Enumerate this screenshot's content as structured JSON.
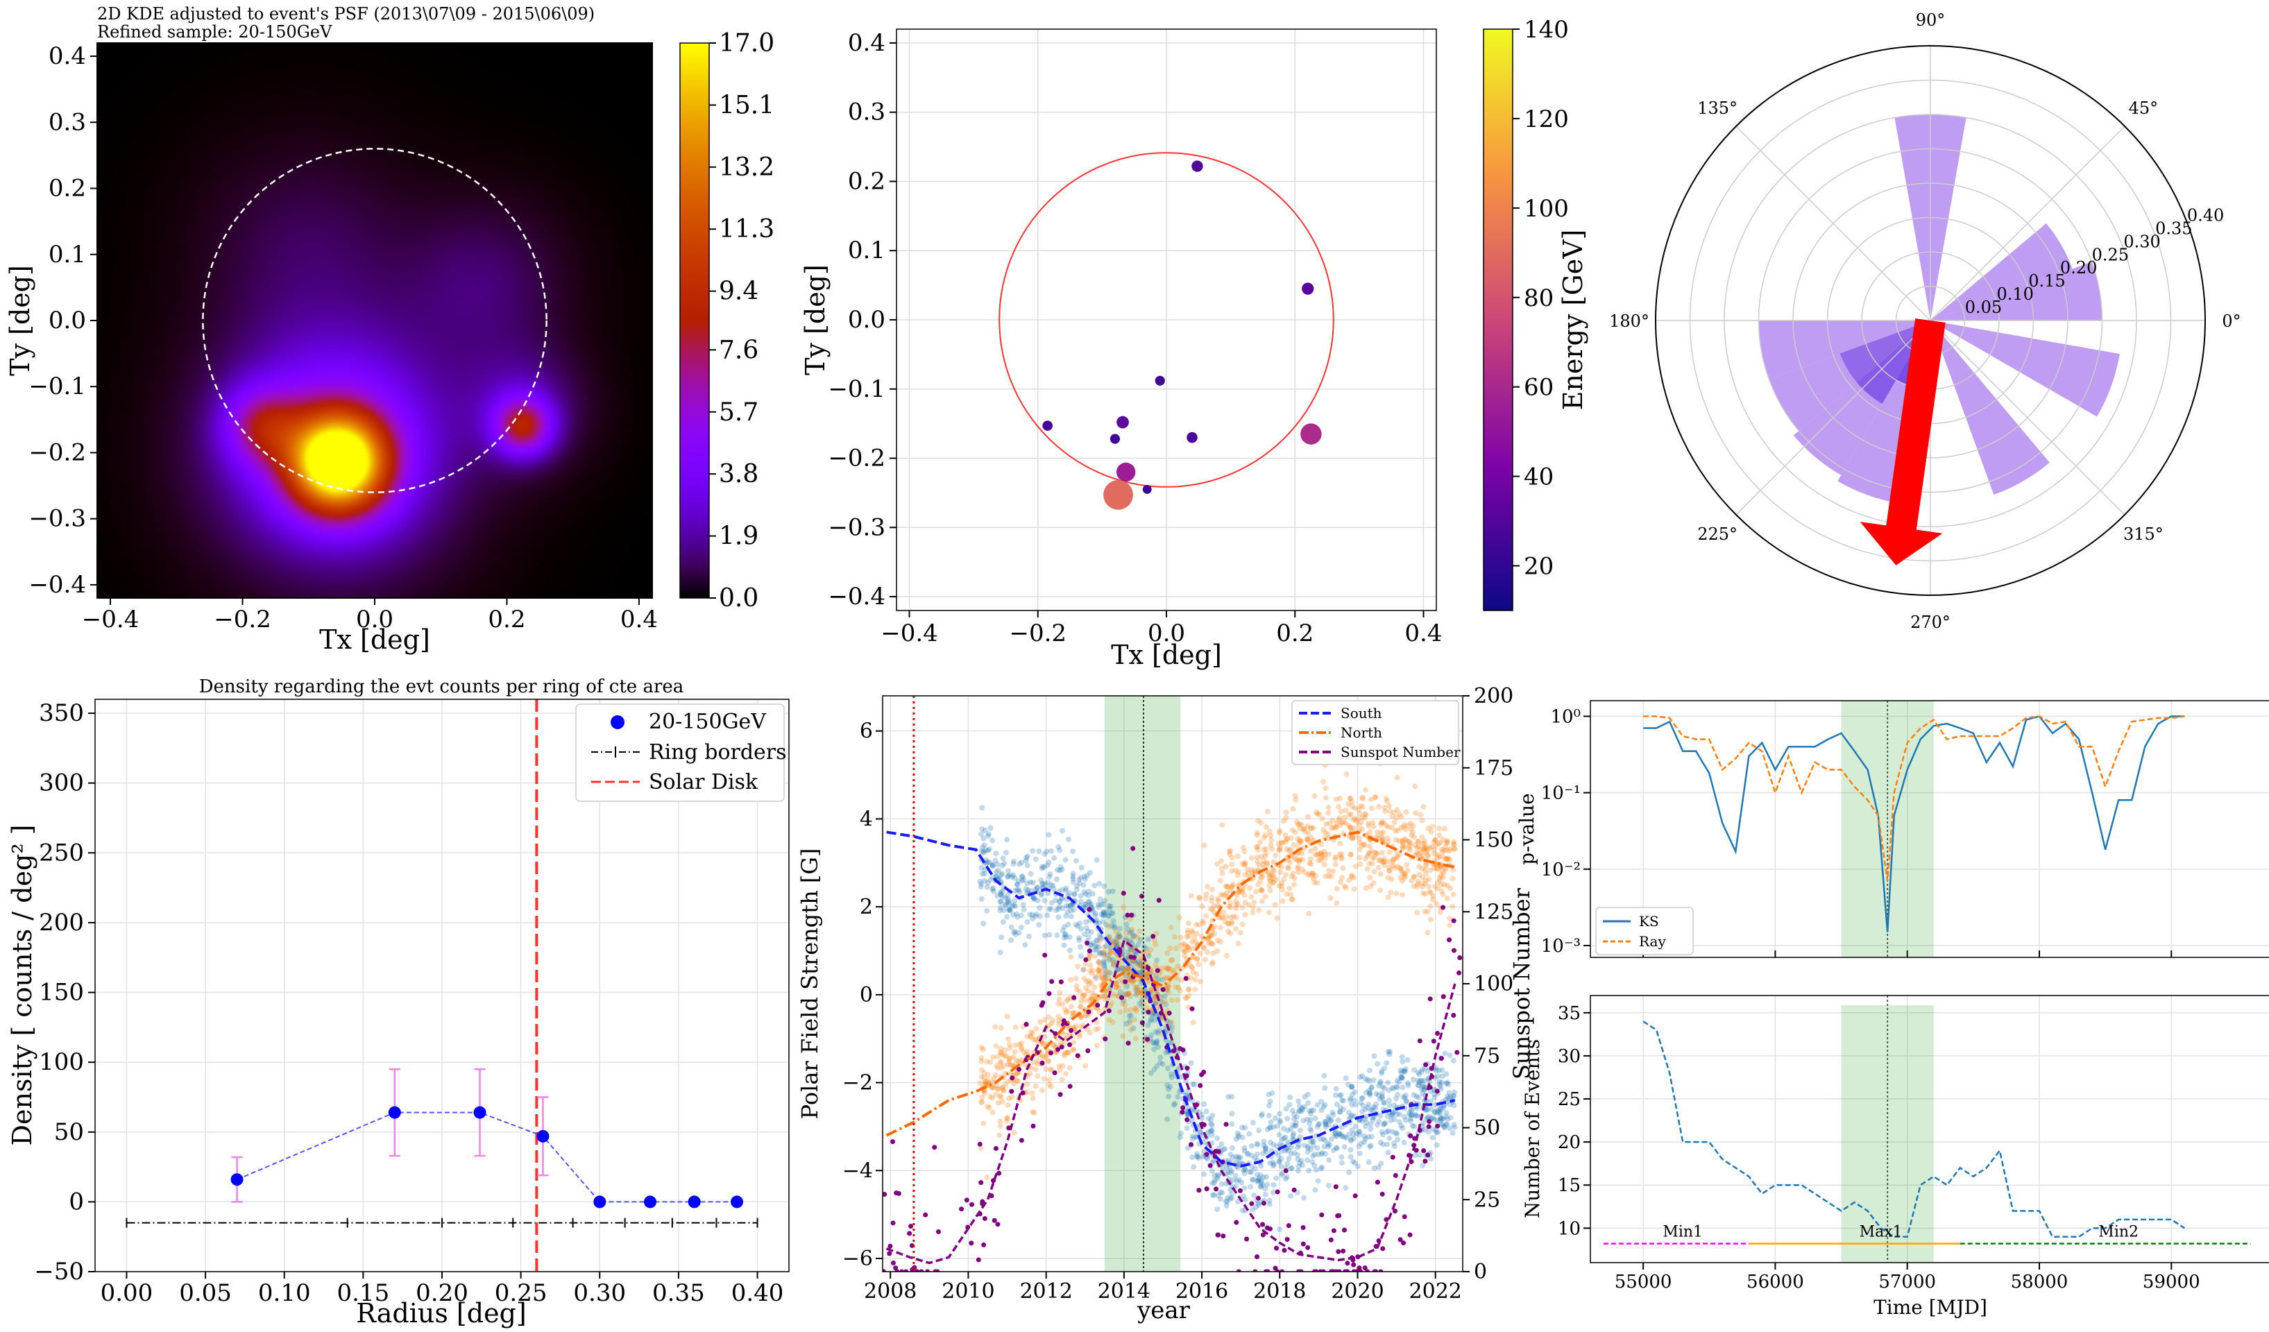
{
  "chart_data": [
    {
      "id": "kde",
      "type": "heatmap",
      "title": "2D KDE adjusted to event's PSF (2013\\07\\09 - 2015\\06\\09)",
      "subtitle": "Refined sample: 20-150GeV",
      "xlabel": "Tx [deg]",
      "ylabel": "Ty [deg]",
      "xlim": [
        -0.42,
        0.42
      ],
      "ylim": [
        -0.42,
        0.42
      ],
      "xticks": [
        "−0.4",
        "−0.2",
        "0.0",
        "0.2",
        "0.4"
      ],
      "yticks": [
        "0.4",
        "0.3",
        "0.2",
        "0.1",
        "0.0",
        "−0.1",
        "−0.2",
        "−0.3",
        "−0.4"
      ],
      "colorbar_ticks": [
        "17.0",
        "15.1",
        "13.2",
        "11.3",
        "9.4",
        "7.6",
        "5.7",
        "3.8",
        "1.9",
        "0.0"
      ],
      "colorbar_range": [
        0,
        17
      ],
      "solar_disk_radius": 0.26,
      "blobs": [
        {
          "x": -0.055,
          "y": -0.215,
          "amp": 17,
          "s": 0.05
        },
        {
          "x": -0.06,
          "y": -0.19,
          "amp": 6,
          "s": 0.11
        },
        {
          "x": -0.17,
          "y": -0.16,
          "amp": 5,
          "s": 0.04
        },
        {
          "x": 0.225,
          "y": -0.16,
          "amp": 7,
          "s": 0.03
        },
        {
          "x": 0.22,
          "y": -0.13,
          "amp": 2,
          "s": 0.06
        },
        {
          "x": 0.16,
          "y": 0.05,
          "amp": 1.3,
          "s": 0.08
        },
        {
          "x": -0.1,
          "y": 0.1,
          "amp": 1.0,
          "s": 0.1
        }
      ]
    },
    {
      "id": "scatter",
      "type": "scatter",
      "xlabel": "Tx [deg]",
      "ylabel": "Ty [deg]",
      "colorbar_label": "Energy [GeV]",
      "xlim": [
        -0.42,
        0.42
      ],
      "ylim": [
        -0.42,
        0.42
      ],
      "xticks": [
        "−0.4",
        "−0.2",
        "0.0",
        "0.2",
        "0.4"
      ],
      "yticks": [
        "0.4",
        "0.3",
        "0.2",
        "0.1",
        "0.0",
        "−0.1",
        "−0.2",
        "−0.3",
        "−0.4"
      ],
      "colorbar_ticks": [
        "140",
        "120",
        "100",
        "80",
        "60",
        "40",
        "20"
      ],
      "colorbar_range": [
        10,
        140
      ],
      "solar_disk_radius": 0.26,
      "points": [
        {
          "x": 0.048,
          "y": 0.222,
          "e": 30
        },
        {
          "x": 0.22,
          "y": 0.045,
          "e": 32
        },
        {
          "x": -0.01,
          "y": -0.088,
          "e": 25
        },
        {
          "x": -0.185,
          "y": -0.153,
          "e": 26
        },
        {
          "x": -0.068,
          "y": -0.148,
          "e": 33
        },
        {
          "x": -0.08,
          "y": -0.172,
          "e": 25
        },
        {
          "x": 0.04,
          "y": -0.17,
          "e": 28
        },
        {
          "x": 0.225,
          "y": -0.165,
          "e": 62
        },
        {
          "x": -0.063,
          "y": -0.22,
          "e": 55
        },
        {
          "x": -0.03,
          "y": -0.245,
          "e": 22
        },
        {
          "x": -0.075,
          "y": -0.253,
          "e": 90
        }
      ]
    },
    {
      "id": "polar",
      "type": "bar",
      "angle_labels": [
        "0°",
        "45°",
        "90°",
        "135°",
        "180°",
        "225°",
        "270°",
        "315°"
      ],
      "radial_ticks": [
        "0.05",
        "0.10",
        "0.15",
        "0.20",
        "0.25",
        "0.30",
        "0.35",
        "0.40"
      ],
      "rmax": 0.4,
      "sectors": [
        {
          "start": 0,
          "end": 20,
          "r": 0.25,
          "color": "#b48cf0"
        },
        {
          "start": 20,
          "end": 40,
          "r": 0.22,
          "color": "#b48cf0"
        },
        {
          "start": 80,
          "end": 100,
          "r": 0.3,
          "color": "#b48cf0"
        },
        {
          "start": 180,
          "end": 200,
          "r": 0.25,
          "color": "#b48cf0"
        },
        {
          "start": 200,
          "end": 220,
          "r": 0.25,
          "color": "#b48cf0"
        },
        {
          "start": 220,
          "end": 240,
          "r": 0.26,
          "color": "#b48cf0"
        },
        {
          "start": 240,
          "end": 260,
          "r": 0.27,
          "color": "#b48cf0"
        },
        {
          "start": 290,
          "end": 310,
          "r": 0.27,
          "color": "#b48cf0"
        },
        {
          "start": 330,
          "end": 350,
          "r": 0.28,
          "color": "#b48cf0"
        },
        {
          "start": 200,
          "end": 220,
          "r": 0.14,
          "color": "#8a60e8"
        },
        {
          "start": 220,
          "end": 240,
          "r": 0.14,
          "color": "#7b50e6"
        },
        {
          "start": 240,
          "end": 260,
          "r": 0.1,
          "color": "#6a3fe0"
        }
      ],
      "arrow": {
        "angle": 262,
        "length": 0.36,
        "color": "#ff0000"
      }
    },
    {
      "id": "density",
      "type": "scatter",
      "title": "Density regarding the evt counts per ring of cte area",
      "xlabel": "Radius [deg]",
      "ylabel": "Density [ counts / deg² ]",
      "xlim": [
        -0.02,
        0.42
      ],
      "ylim": [
        -50,
        360
      ],
      "xticks": [
        "0.00",
        "0.05",
        "0.10",
        "0.15",
        "0.20",
        "0.25",
        "0.30",
        "0.35",
        "0.40"
      ],
      "yticks": [
        "350",
        "300",
        "250",
        "200",
        "150",
        "100",
        "50",
        "0",
        "−50"
      ],
      "legend": [
        "20-150GeV",
        "Ring borders",
        "Solar Disk"
      ],
      "x": [
        0.07,
        0.17,
        0.224,
        0.264,
        0.3,
        0.332,
        0.36,
        0.387
      ],
      "y": [
        16,
        64,
        64,
        47,
        0,
        0,
        0,
        0
      ],
      "yerr": [
        16,
        31,
        31,
        28,
        0,
        0,
        0,
        0
      ],
      "ring_borders": [
        0,
        0.14,
        0.2,
        0.245,
        0.283,
        0.316,
        0.346,
        0.374,
        0.4
      ],
      "ring_y": -15,
      "solar_disk_x": 0.26
    },
    {
      "id": "polar_field",
      "type": "line",
      "xlabel": "year",
      "ylabel": "Polar Field Strength [G]",
      "y2label": "Sunspot Number",
      "xlim": [
        2007.8,
        2022.7
      ],
      "ylim": [
        -6.3,
        6.8
      ],
      "y2lim": [
        0,
        200
      ],
      "xticks": [
        "2008",
        "2010",
        "2012",
        "2014",
        "2016",
        "2018",
        "2020",
        "2022"
      ],
      "yticks": [
        "6",
        "4",
        "2",
        "0",
        "−2",
        "−4",
        "−6"
      ],
      "y2ticks": [
        "200",
        "175",
        "150",
        "125",
        "100",
        "75",
        "50",
        "25",
        "0"
      ],
      "legend": [
        "South",
        "North",
        "Sunspot Number"
      ],
      "shade": [
        2013.5,
        2015.45
      ],
      "vline_dotted_red": 2008.6,
      "vline_dotted_black": 2014.5,
      "series": [
        {
          "name": "South",
          "x": [
            2007.9,
            2008.6,
            2009.5,
            2010.2,
            2010.7,
            2011.3,
            2012,
            2012.6,
            2013.2,
            2013.6,
            2014,
            2014.5,
            2015,
            2015.5,
            2016,
            2016.5,
            2017,
            2017.5,
            2018,
            2018.5,
            2019,
            2019.5,
            2020,
            2020.5,
            2021,
            2021.5,
            2022,
            2022.5
          ],
          "y": [
            3.7,
            3.6,
            3.4,
            3.3,
            2.6,
            2.2,
            2.4,
            2.2,
            1.7,
            1.2,
            0.8,
            0.3,
            -0.8,
            -2.2,
            -3.4,
            -3.8,
            -3.9,
            -3.8,
            -3.5,
            -3.3,
            -3.2,
            -3.0,
            -2.8,
            -2.7,
            -2.6,
            -2.5,
            -2.5,
            -2.4
          ]
        },
        {
          "name": "North",
          "x": [
            2007.9,
            2008.6,
            2009.5,
            2010.2,
            2010.7,
            2011.3,
            2012,
            2012.6,
            2013.2,
            2013.6,
            2014,
            2014.5,
            2015,
            2015.5,
            2016,
            2016.5,
            2017,
            2017.5,
            2018,
            2018.5,
            2019,
            2019.5,
            2020,
            2020.5,
            2021,
            2021.5,
            2022,
            2022.5
          ],
          "y": [
            -3.2,
            -2.9,
            -2.4,
            -2.2,
            -2.0,
            -1.6,
            -1.2,
            -0.6,
            -0.2,
            0.3,
            0.5,
            0.4,
            0.2,
            0.6,
            1.2,
            2.0,
            2.5,
            2.8,
            3.0,
            3.3,
            3.5,
            3.6,
            3.7,
            3.5,
            3.3,
            3.1,
            3.0,
            2.9
          ]
        },
        {
          "name": "Sunspot Number",
          "x": [
            2007.9,
            2008.5,
            2009,
            2009.5,
            2010,
            2010.5,
            2011,
            2011.5,
            2012,
            2012.5,
            2013,
            2013.5,
            2014,
            2014.5,
            2015,
            2015.5,
            2016,
            2016.5,
            2017,
            2017.5,
            2018,
            2018.5,
            2019,
            2019.5,
            2020,
            2020.5,
            2021,
            2021.5,
            2022,
            2022.5
          ],
          "y": [
            8,
            5,
            3,
            5,
            15,
            25,
            45,
            70,
            85,
            80,
            85,
            90,
            115,
            110,
            90,
            70,
            50,
            35,
            25,
            15,
            10,
            6,
            5,
            4,
            5,
            8,
            25,
            45,
            75,
            100
          ]
        }
      ]
    },
    {
      "id": "pvalue",
      "type": "line",
      "ylabel": "p-value",
      "yscale": "log",
      "xlim": [
        54600,
        59750
      ],
      "ylim": [
        0.0007,
        1.6
      ],
      "yticks": [
        "10⁰",
        "10⁻¹",
        "10⁻²",
        "10⁻³"
      ],
      "legend": [
        "KS",
        "Ray"
      ],
      "shade": [
        56500,
        57200
      ],
      "vline": 56850,
      "series": [
        {
          "name": "KS",
          "x": [
            55000,
            55100,
            55200,
            55300,
            55400,
            55500,
            55600,
            55700,
            55800,
            55900,
            56000,
            56100,
            56200,
            56300,
            56400,
            56500,
            56600,
            56700,
            56780,
            56850,
            56900,
            57000,
            57100,
            57200,
            57300,
            57400,
            57500,
            57600,
            57700,
            57800,
            57900,
            58000,
            58100,
            58200,
            58300,
            58400,
            58500,
            58600,
            58700,
            58800,
            58900,
            59000,
            59100
          ],
          "y": [
            0.7,
            0.7,
            0.85,
            0.35,
            0.35,
            0.18,
            0.04,
            0.017,
            0.3,
            0.45,
            0.2,
            0.4,
            0.4,
            0.4,
            0.5,
            0.6,
            0.35,
            0.2,
            0.05,
            0.0015,
            0.05,
            0.2,
            0.5,
            0.75,
            0.8,
            0.7,
            0.6,
            0.25,
            0.45,
            0.22,
            0.9,
            1.0,
            0.6,
            0.8,
            0.5,
            0.1,
            0.018,
            0.08,
            0.08,
            0.4,
            0.8,
            1.0,
            1.0
          ]
        },
        {
          "name": "Ray",
          "x": [
            55000,
            55100,
            55200,
            55300,
            55400,
            55500,
            55600,
            55700,
            55800,
            55900,
            56000,
            56100,
            56200,
            56300,
            56400,
            56500,
            56600,
            56700,
            56780,
            56850,
            56900,
            57000,
            57100,
            57200,
            57300,
            57400,
            57500,
            57600,
            57700,
            57800,
            57900,
            58000,
            58100,
            58200,
            58300,
            58400,
            58500,
            58600,
            58700,
            58800,
            58900,
            59000,
            59100
          ],
          "y": [
            1.0,
            1.0,
            0.95,
            0.55,
            0.5,
            0.5,
            0.2,
            0.28,
            0.45,
            0.35,
            0.1,
            0.3,
            0.1,
            0.25,
            0.2,
            0.2,
            0.12,
            0.08,
            0.05,
            0.007,
            0.1,
            0.45,
            0.7,
            0.9,
            0.5,
            0.55,
            0.55,
            0.55,
            0.55,
            0.7,
            0.95,
            1.0,
            0.8,
            0.85,
            0.4,
            0.4,
            0.12,
            0.35,
            0.85,
            0.9,
            0.95,
            0.95,
            1.0
          ]
        }
      ]
    },
    {
      "id": "events",
      "type": "line",
      "xlabel": "Time [MJD]",
      "ylabel": "Number of Events",
      "xlim": [
        54600,
        59750
      ],
      "ylim": [
        6,
        37
      ],
      "xticks": [
        "55000",
        "56000",
        "57000",
        "58000",
        "59000"
      ],
      "yticks": [
        "35",
        "30",
        "25",
        "20",
        "15",
        "10"
      ],
      "shade": [
        56500,
        57200
      ],
      "vline": 56850,
      "series": [
        {
          "name": "events",
          "x": [
            55000,
            55100,
            55200,
            55300,
            55400,
            55500,
            55600,
            55700,
            55800,
            55900,
            56000,
            56100,
            56200,
            56300,
            56400,
            56500,
            56600,
            56700,
            56800,
            56900,
            57000,
            57100,
            57200,
            57300,
            57400,
            57500,
            57600,
            57700,
            57800,
            57900,
            58000,
            58100,
            58200,
            58300,
            58400,
            58500,
            58600,
            58700,
            58800,
            58900,
            59000,
            59100
          ],
          "y": [
            34,
            33,
            28,
            20,
            20,
            20,
            18,
            17,
            16,
            14,
            15,
            15,
            15,
            14,
            13,
            12,
            13,
            12,
            10,
            9,
            9,
            15,
            16,
            15,
            17,
            16,
            17,
            19,
            12,
            12,
            12,
            9,
            9,
            9,
            10,
            10,
            11,
            11,
            11,
            11,
            11,
            10
          ]
        }
      ],
      "cycle_labels": [
        {
          "label": "Min1",
          "start": 54700,
          "end": 55800,
          "x": 55300,
          "color": "#ff00ff"
        },
        {
          "label": "Max1",
          "start": 55800,
          "end": 57400,
          "x": 56800,
          "color": "#ffa500"
        },
        {
          "label": "Min2",
          "start": 57400,
          "end": 59600,
          "x": 58600,
          "color": "#008000"
        }
      ]
    }
  ]
}
